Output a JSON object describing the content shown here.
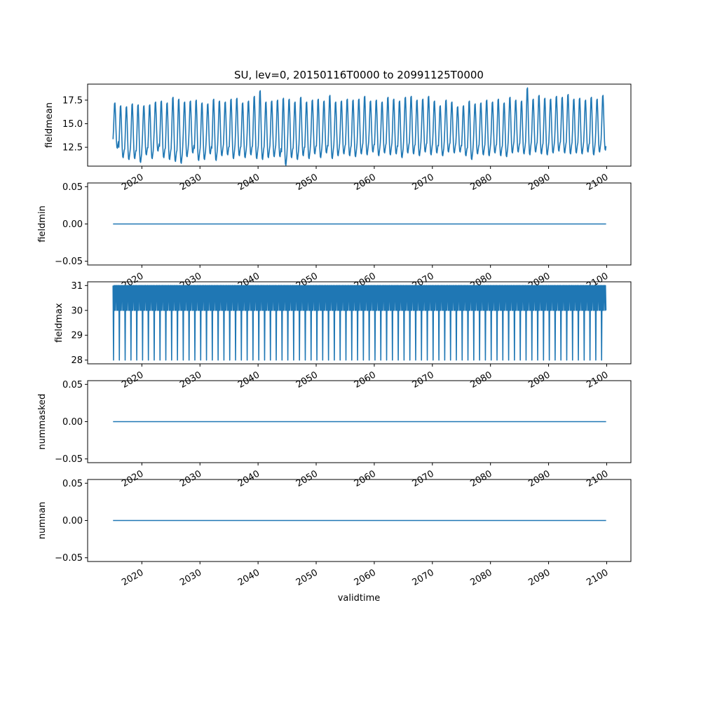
{
  "chart_data": {
    "title": "SU, lev=0, 20150116T0000 to 20991125T0000",
    "x_range": [
      "2015-01-16",
      "2099-11-25"
    ],
    "xlim": [
      "2010-09-01",
      "2104-03-01"
    ],
    "xticks": [
      "2020",
      "2030",
      "2040",
      "2050",
      "2060",
      "2070",
      "2080",
      "2090",
      "2100"
    ],
    "xlabel": "validtime",
    "series_color": "#1f77b4",
    "subplots": [
      {
        "type": "line",
        "ylabel": "fieldmean",
        "ylim": [
          10.5,
          19.2
        ],
        "yticks": [
          "12.5",
          "15.0",
          "17.5"
        ],
        "ytick_values": [
          12.5,
          15.0,
          17.5
        ],
        "pattern": "seasonal",
        "monthly_profile": [
          12.6,
          13.8,
          15.4,
          16.9,
          17.0,
          15.7,
          13.9,
          12.4,
          11.6,
          11.5,
          11.9,
          12.3
        ],
        "yearly_peak": [
          17.2,
          16.9,
          16.8,
          17.1,
          17.0,
          16.9,
          17.0,
          17.3,
          17.4,
          17.2,
          17.8,
          17.6,
          17.3,
          17.4,
          17.5,
          17.2,
          17.1,
          17.6,
          17.4,
          17.3,
          17.6,
          17.7,
          17.2,
          17.4,
          17.9,
          18.5,
          17.3,
          17.4,
          17.5,
          17.7,
          17.6,
          17.3,
          17.8,
          17.3,
          17.5,
          17.6,
          17.4,
          18.0,
          17.3,
          17.4,
          17.6,
          17.5,
          17.6,
          17.9,
          17.4,
          17.5,
          17.3,
          17.8,
          17.6,
          17.4,
          17.8,
          17.9,
          17.5,
          17.6,
          17.9,
          17.4,
          16.9,
          17.5,
          17.3,
          16.8,
          16.9,
          17.4,
          17.1,
          17.2,
          17.5,
          17.3,
          17.6,
          17.2,
          17.8,
          17.5,
          17.4,
          18.8,
          17.6,
          18.0,
          17.7,
          17.6,
          17.9,
          17.8,
          18.1,
          17.6,
          17.7,
          17.5,
          17.8,
          17.6,
          18.0
        ],
        "yearly_trough": [
          12.4,
          11.4,
          11.2,
          11.3,
          10.9,
          11.7,
          11.3,
          12.1,
          11.4,
          11.2,
          11.0,
          10.8,
          11.5,
          11.9,
          11.1,
          11.2,
          11.8,
          11.1,
          11.6,
          11.7,
          11.3,
          11.6,
          11.4,
          11.7,
          11.3,
          11.2,
          11.4,
          11.5,
          11.5,
          10.6,
          11.4,
          11.2,
          11.6,
          11.3,
          11.8,
          11.4,
          11.9,
          11.3,
          11.6,
          11.8,
          11.6,
          11.5,
          11.8,
          11.7,
          12.0,
          11.6,
          11.9,
          11.7,
          11.8,
          11.4,
          11.9,
          11.8,
          11.6,
          12.0,
          11.7,
          11.9,
          11.6,
          12.0,
          11.9,
          12.0,
          11.6,
          11.2,
          11.8,
          11.7,
          11.6,
          11.9,
          11.6,
          11.5,
          11.9,
          12.0,
          11.8,
          11.7,
          12.0,
          11.8,
          11.7,
          11.9,
          12.1,
          11.9,
          11.8,
          11.9,
          11.8,
          12.0,
          11.7,
          12.0,
          12.2
        ]
      },
      {
        "type": "line",
        "ylabel": "fieldmin",
        "ylim": [
          -0.055,
          0.055
        ],
        "yticks": [
          "−0.05",
          "0.00",
          "0.05"
        ],
        "ytick_values": [
          -0.05,
          0.0,
          0.05
        ],
        "pattern": "constant",
        "value": 0.0
      },
      {
        "type": "line",
        "ylabel": "fieldmax",
        "ylim": [
          27.85,
          31.15
        ],
        "yticks": [
          "28",
          "29",
          "30",
          "31"
        ],
        "ytick_values": [
          28,
          29,
          30,
          31
        ],
        "pattern": "monthly_steps",
        "monthly_profile": [
          31,
          28,
          31,
          30,
          31,
          30,
          31,
          31,
          30,
          31,
          30,
          31
        ]
      },
      {
        "type": "line",
        "ylabel": "nummasked",
        "ylim": [
          -0.055,
          0.055
        ],
        "yticks": [
          "−0.05",
          "0.00",
          "0.05"
        ],
        "ytick_values": [
          -0.05,
          0.0,
          0.05
        ],
        "pattern": "constant",
        "value": 0.0
      },
      {
        "type": "line",
        "ylabel": "numnan",
        "ylim": [
          -0.055,
          0.055
        ],
        "yticks": [
          "−0.05",
          "0.00",
          "0.05"
        ],
        "ytick_values": [
          -0.05,
          0.0,
          0.05
        ],
        "pattern": "constant",
        "value": 0.0
      }
    ]
  }
}
